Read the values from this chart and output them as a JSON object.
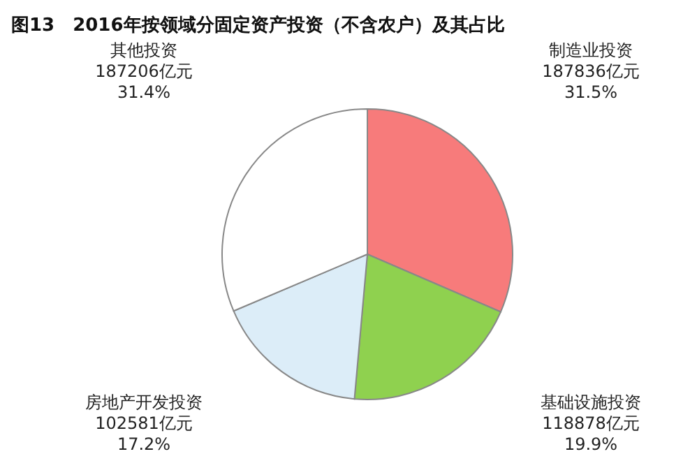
{
  "chart_data": {
    "type": "pie",
    "title": "图13　2016年按领域分固定资产投资（不含农户）及其占比",
    "categories": [
      "制造业投资",
      "基础设施投资",
      "房地产开发投资",
      "其他投资"
    ],
    "values": [
      187836,
      118878,
      102581,
      187206
    ],
    "value_labels": [
      "187836亿元\n31.5%",
      "118878亿元\n19.9%",
      "102581亿元\n17.2%",
      "187206亿元\n31.4%"
    ],
    "colors": [
      "#f77b7b",
      "#8fd14f",
      "#dcedf8",
      "#ffffff"
    ]
  }
}
